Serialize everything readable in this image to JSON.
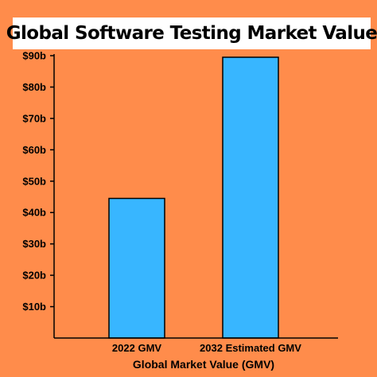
{
  "chart_data": {
    "type": "bar",
    "title": "Global Software Testing Market Value",
    "xlabel": "Global Market Value (GMV)",
    "ylabel": "",
    "categories": [
      "2022 GMV",
      "2032 Estimated GMV"
    ],
    "values": [
      44.5,
      89.5
    ],
    "ylim": [
      0,
      90
    ],
    "yticks": [
      10,
      20,
      30,
      40,
      50,
      60,
      70,
      80,
      90
    ],
    "ytick_labels": [
      "$10b",
      "$20b",
      "$30b",
      "$40b",
      "$50b",
      "$60b",
      "$70b",
      "$80b",
      "$90b"
    ],
    "grid": false,
    "legend": "none",
    "colors": {
      "background": "#FF8C4B",
      "bar": "#38B6FF",
      "title_banner": "#FFFFFF",
      "axis": "#000000"
    }
  }
}
